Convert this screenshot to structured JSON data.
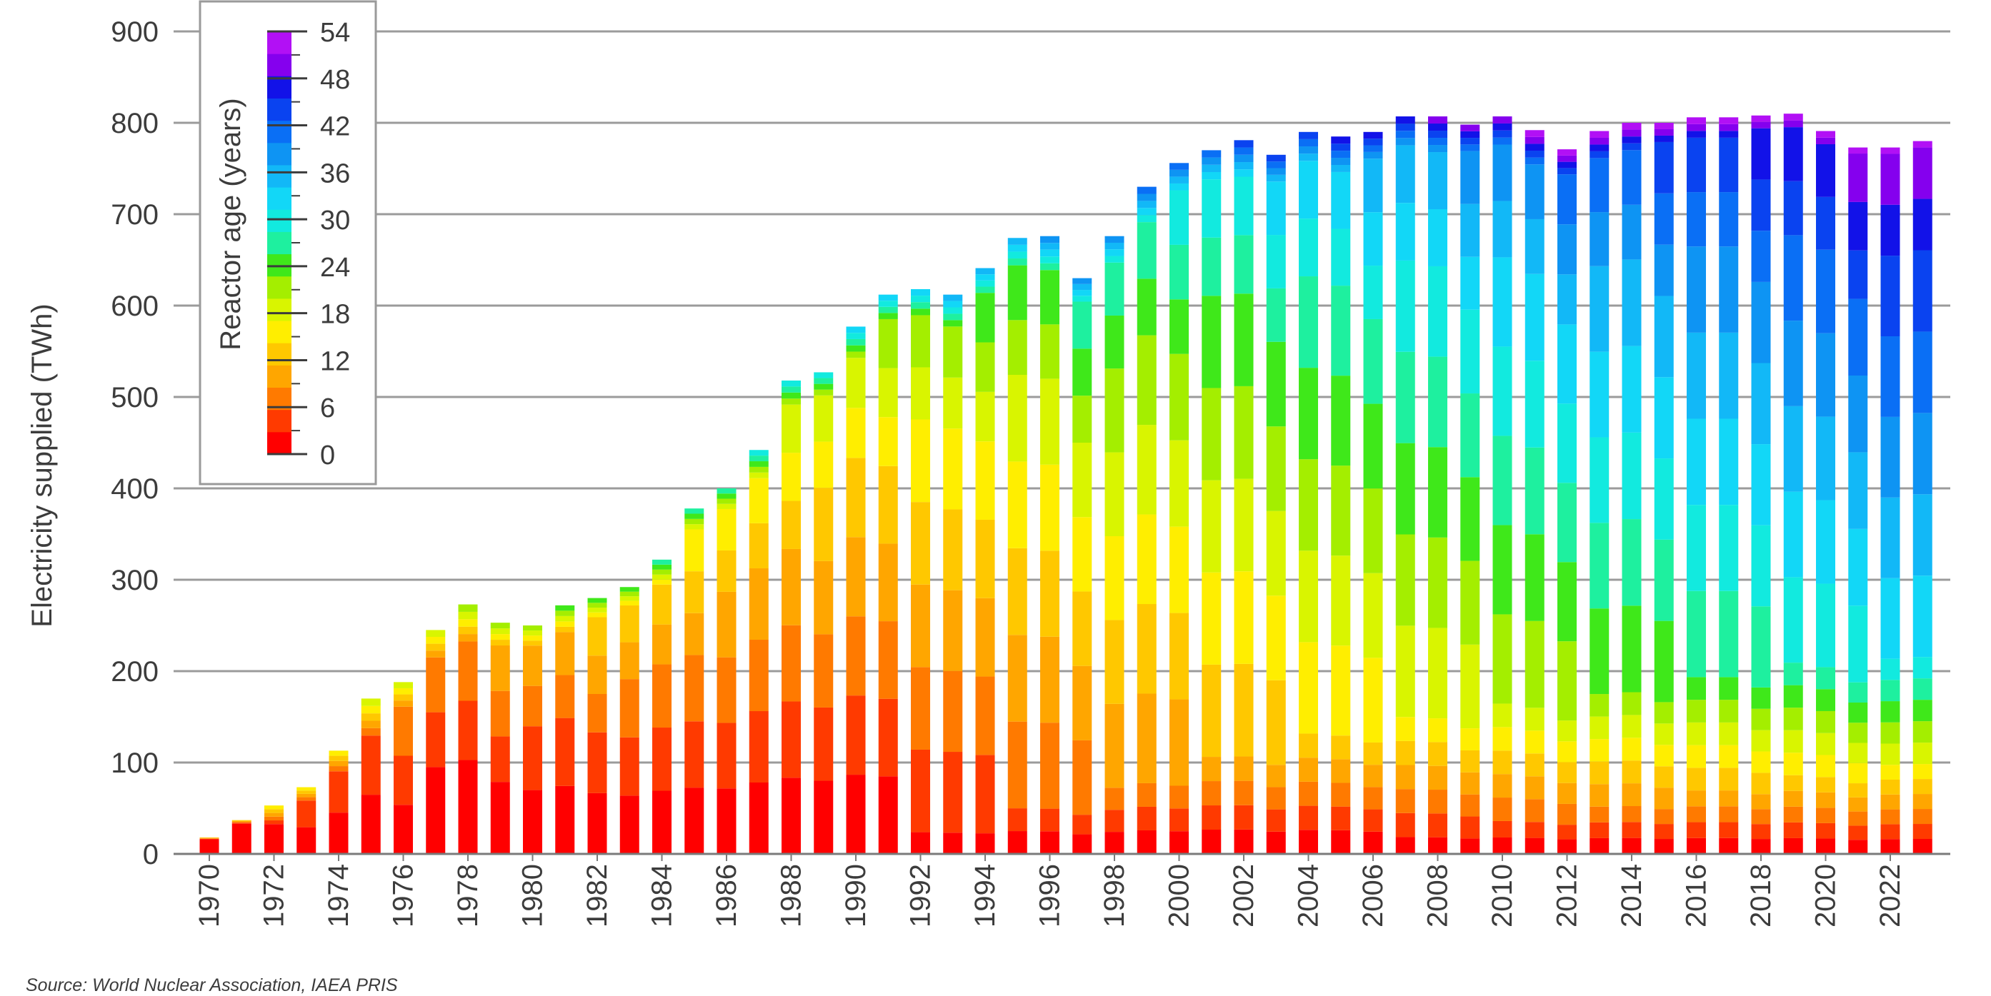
{
  "source_note": "Source: World Nuclear Association, IAEA PRIS",
  "chart_data": {
    "type": "bar",
    "stacked": true,
    "title": "",
    "xlabel": "",
    "ylabel": "Electricity supplied (TWh)",
    "ylim": [
      0,
      900
    ],
    "yticks": [
      0,
      100,
      200,
      300,
      400,
      500,
      600,
      700,
      800,
      900
    ],
    "grid": "horizontal",
    "x": [
      1970,
      1971,
      1972,
      1973,
      1974,
      1975,
      1976,
      1977,
      1978,
      1979,
      1980,
      1981,
      1982,
      1983,
      1984,
      1985,
      1986,
      1987,
      1988,
      1989,
      1990,
      1991,
      1992,
      1993,
      1994,
      1995,
      1996,
      1997,
      1998,
      1999,
      2000,
      2001,
      2002,
      2003,
      2004,
      2005,
      2006,
      2007,
      2008,
      2009,
      2010,
      2011,
      2012,
      2013,
      2014,
      2015,
      2016,
      2017,
      2018,
      2019,
      2020,
      2021,
      2022,
      2023
    ],
    "x_tick_labels": [
      "1970",
      "1972",
      "1974",
      "1976",
      "1978",
      "1980",
      "1982",
      "1984",
      "1986",
      "1988",
      "1990",
      "1992",
      "1994",
      "1996",
      "1998",
      "2000",
      "2002",
      "2004",
      "2006",
      "2008",
      "2010",
      "2012",
      "2014",
      "2016",
      "2018",
      "2020",
      "2022"
    ],
    "totals": [
      18,
      37,
      53,
      73,
      113,
      170,
      188,
      245,
      273,
      253,
      250,
      272,
      280,
      292,
      322,
      378,
      400,
      442,
      518,
      527,
      577,
      612,
      618,
      612,
      641,
      674,
      676,
      630,
      676,
      730,
      756,
      770,
      781,
      765,
      790,
      785,
      790,
      807,
      807,
      798,
      807,
      792,
      771,
      791,
      800,
      800,
      806,
      806,
      808,
      810,
      791,
      773,
      773,
      780
    ],
    "legend": {
      "title": "Reactor age (years)",
      "placement": "top-left",
      "tick_labels": [
        "54",
        "48",
        "42",
        "36",
        "30",
        "24",
        "18",
        "12",
        "6",
        "0"
      ],
      "bins": [
        {
          "age": 0,
          "color": "#ff0000"
        },
        {
          "age": 3,
          "color": "#ff3a00"
        },
        {
          "age": 6,
          "color": "#ff7a00"
        },
        {
          "age": 9,
          "color": "#ffa600"
        },
        {
          "age": 12,
          "color": "#ffc800"
        },
        {
          "age": 15,
          "color": "#ffee00"
        },
        {
          "age": 18,
          "color": "#d9f500"
        },
        {
          "age": 21,
          "color": "#a4ee00"
        },
        {
          "age": 24,
          "color": "#3fe81a"
        },
        {
          "age": 27,
          "color": "#1ef09f"
        },
        {
          "age": 30,
          "color": "#12eadf"
        },
        {
          "age": 33,
          "color": "#12d7f7"
        },
        {
          "age": 36,
          "color": "#12b8f7"
        },
        {
          "age": 39,
          "color": "#0e94f3"
        },
        {
          "age": 42,
          "color": "#0a6ff5"
        },
        {
          "age": 45,
          "color": "#0a43f0"
        },
        {
          "age": 48,
          "color": "#1212e8"
        },
        {
          "age": 51,
          "color": "#8500ee"
        },
        {
          "age": 54,
          "color": "#b210f5"
        }
      ]
    }
  }
}
